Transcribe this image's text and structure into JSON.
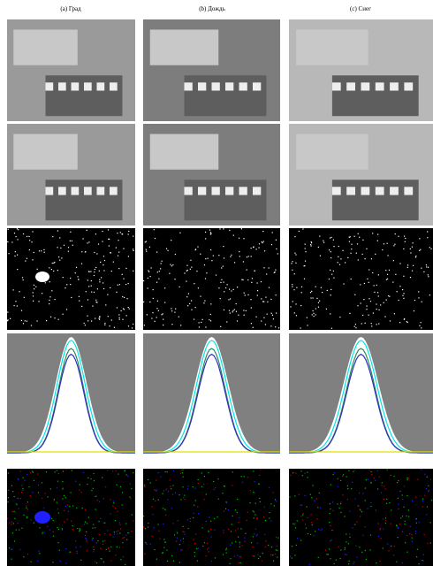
{
  "figure": {
    "columns": [
      {
        "label": "(a) Град"
      },
      {
        "label": "(b) Дождь"
      },
      {
        "label": "(c) Снег"
      }
    ]
  }
}
